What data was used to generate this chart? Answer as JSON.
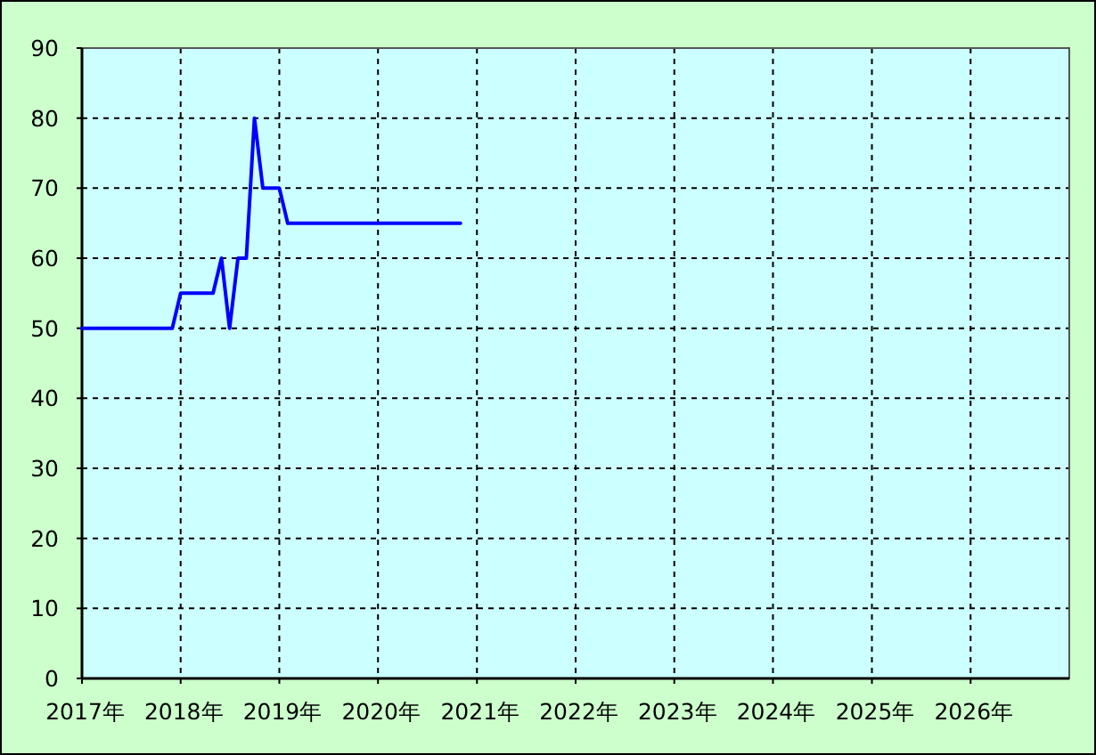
{
  "chart_data": {
    "type": "line",
    "x": [
      "2017-01",
      "2017-02",
      "2017-03",
      "2017-04",
      "2017-05",
      "2017-06",
      "2017-07",
      "2017-08",
      "2017-09",
      "2017-10",
      "2017-11",
      "2017-12",
      "2018-01",
      "2018-02",
      "2018-03",
      "2018-04",
      "2018-05",
      "2018-06",
      "2018-07",
      "2018-08",
      "2018-09",
      "2018-10",
      "2018-11",
      "2018-12",
      "2019-01",
      "2019-02",
      "2019-03",
      "2019-04",
      "2019-05",
      "2019-06",
      "2019-07",
      "2019-08",
      "2019-09",
      "2019-10",
      "2019-11",
      "2019-12",
      "2020-01",
      "2020-02",
      "2020-03",
      "2020-04",
      "2020-05",
      "2020-06",
      "2020-07",
      "2020-08",
      "2020-09",
      "2020-10",
      "2020-11"
    ],
    "values": [
      50,
      50,
      50,
      50,
      50,
      50,
      50,
      50,
      50,
      50,
      50,
      50,
      55,
      55,
      55,
      55,
      55,
      60,
      50,
      60,
      60,
      80,
      70,
      70,
      70,
      65,
      65,
      65,
      65,
      65,
      65,
      65,
      65,
      65,
      65,
      65,
      65,
      65,
      65,
      65,
      65,
      65,
      65,
      65,
      65,
      65,
      65
    ],
    "color": "#0000ff",
    "xlim": [
      "2017",
      "2027"
    ],
    "xticks": [
      {
        "value": "2017",
        "label": "2017年"
      },
      {
        "value": "2018",
        "label": "2018年"
      },
      {
        "value": "2019",
        "label": "2019年"
      },
      {
        "value": "2020",
        "label": "2020年"
      },
      {
        "value": "2021",
        "label": "2021年"
      },
      {
        "value": "2022",
        "label": "2022年"
      },
      {
        "value": "2023",
        "label": "2023年"
      },
      {
        "value": "2024",
        "label": "2024年"
      },
      {
        "value": "2025",
        "label": "2025年"
      },
      {
        "value": "2026",
        "label": "2026年"
      }
    ],
    "ylim": [
      0,
      90
    ],
    "yticks": [
      0,
      10,
      20,
      30,
      40,
      50,
      60,
      70,
      80,
      90
    ],
    "grid": true
  }
}
